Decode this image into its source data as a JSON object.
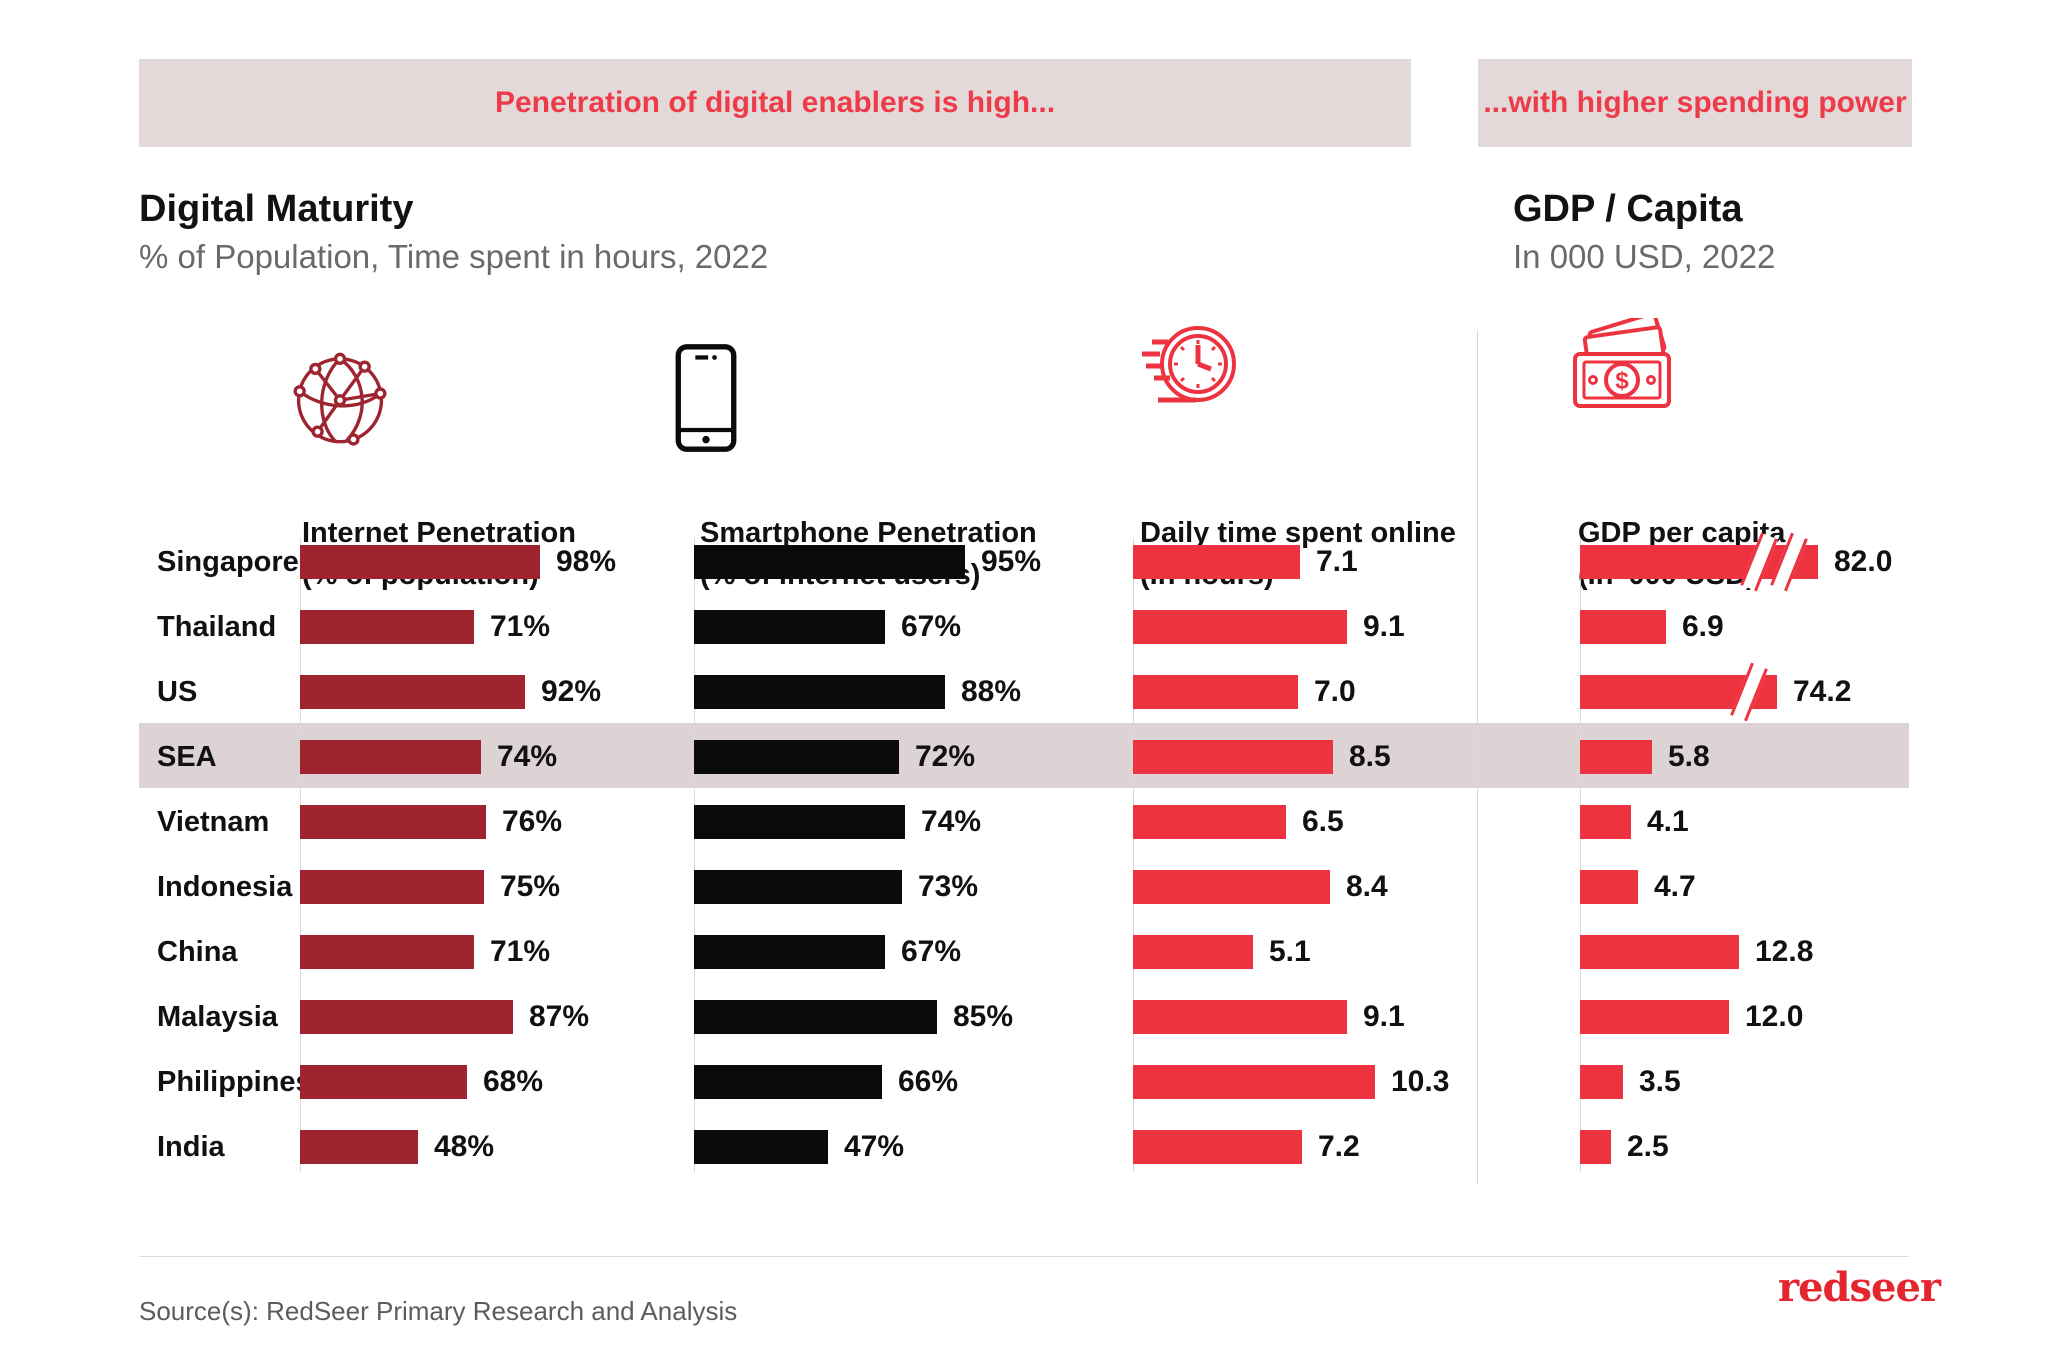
{
  "banners": {
    "left": "Penetration of digital enablers is high...",
    "right": "...with higher spending power"
  },
  "section_left": {
    "title": "Digital Maturity",
    "subtitle": "% of Population, Time spent in hours, 2022"
  },
  "section_right": {
    "title": "GDP / Capita",
    "subtitle": "In 000 USD, 2022"
  },
  "columns": [
    {
      "icon": "globe-network-icon",
      "title": "Internet Penetration",
      "subtitle": "(% of population)"
    },
    {
      "icon": "smartphone-icon",
      "title": "Smartphone Penetration",
      "subtitle": "(% of internet users)"
    },
    {
      "icon": "speed-clock-icon",
      "title": "Daily time spent online",
      "subtitle": "(In hours)"
    },
    {
      "icon": "money-icon",
      "title": "GDP per capita",
      "subtitle": "(In '000 USD)"
    }
  ],
  "colors": {
    "brand_red": "#ED3340",
    "dark_red": "#9E2430",
    "black": "#0B0B0B",
    "banner_bg": "#E3D9D9",
    "highlight_band": "#DDD3D4"
  },
  "chart_data": {
    "type": "bar",
    "orientation": "horizontal",
    "title": "Digital Maturity",
    "subtitle": "% of Population, Time spent in hours, 2022",
    "grid": false,
    "legend_position": "none",
    "categories": [
      "Singapore",
      "Thailand",
      "US",
      "SEA",
      "Vietnam",
      "Indonesia",
      "China",
      "Malaysia",
      "Philippines",
      "India"
    ],
    "highlighted_category": "SEA",
    "series": [
      {
        "name": "Internet Penetration (% of population)",
        "unit": "%",
        "color": "#9E2430",
        "values": [
          98,
          71,
          92,
          74,
          76,
          75,
          71,
          87,
          68,
          48
        ],
        "labels": [
          "98%",
          "71%",
          "92%",
          "74%",
          "76%",
          "75%",
          "71%",
          "87%",
          "68%",
          "48%"
        ]
      },
      {
        "name": "Smartphone Penetration (% of internet users)",
        "unit": "%",
        "color": "#0B0B0B",
        "values": [
          95,
          67,
          88,
          72,
          74,
          73,
          67,
          85,
          66,
          47
        ],
        "labels": [
          "95%",
          "67%",
          "88%",
          "72%",
          "74%",
          "73%",
          "67%",
          "85%",
          "66%",
          "47%"
        ]
      },
      {
        "name": "Daily time spent online (In hours)",
        "unit": "hours",
        "color": "#ED3340",
        "values": [
          7.1,
          9.1,
          7.0,
          8.5,
          6.5,
          8.4,
          5.1,
          9.1,
          10.3,
          7.2
        ],
        "labels": [
          "7.1",
          "9.1",
          "7.0",
          "8.5",
          "6.5",
          "8.4",
          "5.1",
          "9.1",
          "10.3",
          "7.2"
        ]
      },
      {
        "name": "GDP per capita (In '000 USD)",
        "unit": "'000 USD",
        "color": "#ED3340",
        "values": [
          82.0,
          6.9,
          74.2,
          5.8,
          4.1,
          4.7,
          12.8,
          12.0,
          3.5,
          2.5
        ],
        "labels": [
          "82.0",
          "6.9",
          "74.2",
          "5.8",
          "4.1",
          "4.7",
          "12.8",
          "12.0",
          "3.5",
          "2.5"
        ],
        "axis_breaks": [
          {
            "category": "Singapore",
            "slashes": 2
          },
          {
            "category": "US",
            "slashes": 1
          }
        ]
      }
    ]
  },
  "footer": {
    "source": "Source(s): RedSeer Primary Research and Analysis",
    "logo": "redseer"
  }
}
